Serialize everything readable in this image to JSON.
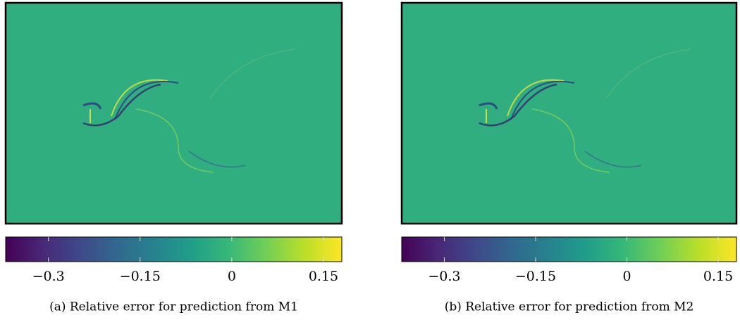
{
  "chart_data": [
    {
      "type": "heatmap",
      "colormap": "viridis",
      "caption": "(a) Relative error for prediction from M1",
      "xlim": [
        -0.37,
        0.18
      ],
      "xticks": [
        {
          "value": -0.3,
          "label": "−0.3"
        },
        {
          "value": -0.15,
          "label": "−0.15"
        },
        0,
        0.15
      ]
    },
    {
      "type": "heatmap",
      "colormap": "viridis",
      "caption": "(b) Relative error for prediction from M2",
      "xlim": [
        -0.37,
        0.18
      ],
      "xticks": [
        {
          "value": -0.3,
          "label": "−0.3"
        },
        {
          "value": -0.15,
          "label": "−0.15"
        },
        0,
        0.15
      ]
    }
  ]
}
